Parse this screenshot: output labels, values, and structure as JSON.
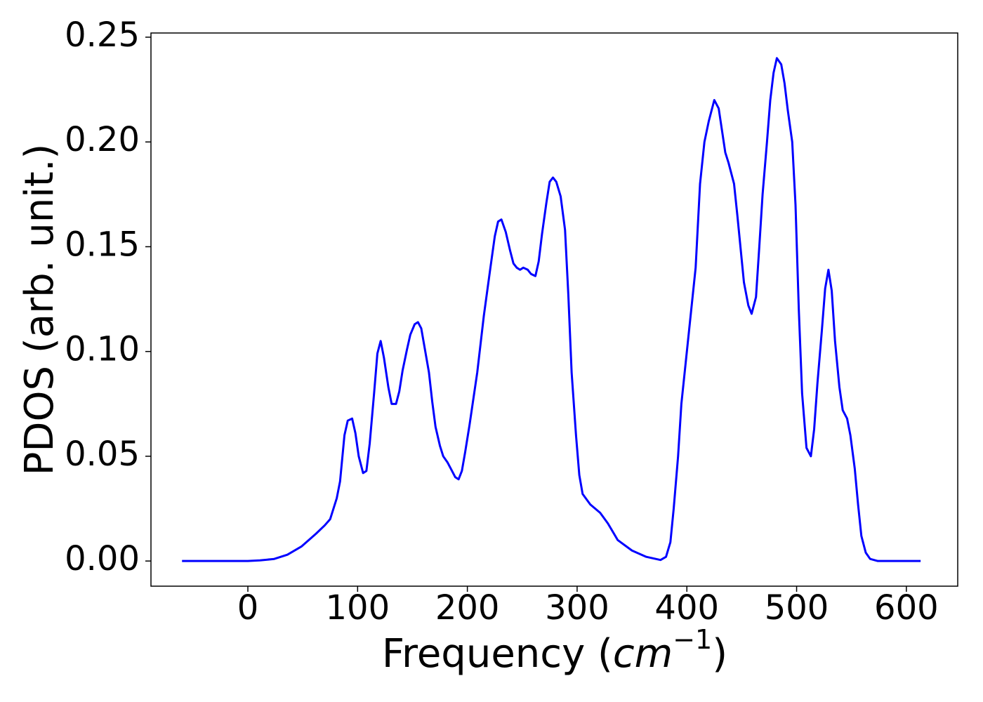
{
  "chart_data": {
    "type": "line",
    "ylabel": "PDOS (arb. unit.)",
    "xlabel": [
      "Frequency (",
      "cm",
      "−1",
      ")"
    ],
    "xlim": [
      -88.3,
      646.8
    ],
    "ylim": [
      -0.012,
      0.252
    ],
    "xticks": [
      0,
      100,
      200,
      300,
      400,
      500,
      600
    ],
    "yticks": [
      {
        "value": 0,
        "label": "0.00"
      },
      {
        "value": 0.05,
        "label": "0.05"
      },
      {
        "value": 0.1,
        "label": "0.10"
      },
      {
        "value": 0.15,
        "label": "0.15"
      },
      {
        "value": 0.2,
        "label": "0.20"
      },
      {
        "value": 0.25,
        "label": "0.25"
      }
    ],
    "color": "#0000ff",
    "x": [
      -60,
      0,
      11,
      24,
      36,
      49,
      62,
      70,
      75,
      81,
      84,
      88,
      91,
      95,
      98,
      101,
      105,
      108,
      111,
      115,
      118,
      121,
      124,
      128,
      131,
      135,
      138,
      141,
      145,
      148,
      152,
      155,
      158,
      161,
      165,
      168,
      171,
      175,
      178,
      182,
      186,
      189,
      192,
      195,
      198,
      202,
      209,
      215,
      221,
      225,
      228,
      231,
      235,
      239,
      242,
      245,
      248,
      251,
      255,
      258,
      262,
      265,
      268,
      272,
      275,
      278,
      281,
      285,
      289,
      292,
      295,
      299,
      302,
      305,
      312,
      321,
      328,
      337,
      350,
      363,
      376,
      381,
      385,
      388,
      392,
      395,
      400,
      408,
      412,
      416,
      420,
      425,
      429,
      435,
      438,
      443,
      446,
      452,
      456,
      459,
      463,
      466,
      469,
      473,
      476,
      479,
      482,
      486,
      489,
      492,
      496,
      499,
      502,
      505,
      509,
      513,
      516,
      519,
      523,
      526,
      529,
      532,
      535,
      539,
      542,
      546,
      549,
      553,
      556,
      559,
      563,
      567,
      574,
      613
    ],
    "values": [
      0,
      0,
      0.0003,
      0.001,
      0.003,
      0.007,
      0.013,
      0.017,
      0.02,
      0.03,
      0.038,
      0.06,
      0.067,
      0.068,
      0.061,
      0.05,
      0.042,
      0.043,
      0.056,
      0.08,
      0.099,
      0.105,
      0.097,
      0.083,
      0.075,
      0.075,
      0.081,
      0.091,
      0.101,
      0.108,
      0.113,
      0.114,
      0.111,
      0.102,
      0.09,
      0.076,
      0.064,
      0.055,
      0.05,
      0.047,
      0.043,
      0.04,
      0.039,
      0.043,
      0.052,
      0.065,
      0.09,
      0.117,
      0.14,
      0.155,
      0.162,
      0.163,
      0.157,
      0.148,
      0.142,
      0.14,
      0.139,
      0.14,
      0.139,
      0.137,
      0.136,
      0.143,
      0.156,
      0.171,
      0.181,
      0.183,
      0.181,
      0.174,
      0.158,
      0.127,
      0.09,
      0.06,
      0.041,
      0.032,
      0.027,
      0.023,
      0.018,
      0.01,
      0.005,
      0.002,
      0.0005,
      0.002,
      0.009,
      0.025,
      0.05,
      0.075,
      0.1,
      0.14,
      0.18,
      0.2,
      0.21,
      0.22,
      0.216,
      0.195,
      0.19,
      0.18,
      0.165,
      0.133,
      0.122,
      0.118,
      0.126,
      0.15,
      0.175,
      0.2,
      0.22,
      0.233,
      0.24,
      0.237,
      0.228,
      0.215,
      0.2,
      0.17,
      0.12,
      0.08,
      0.054,
      0.05,
      0.063,
      0.085,
      0.11,
      0.13,
      0.139,
      0.129,
      0.105,
      0.083,
      0.072,
      0.068,
      0.06,
      0.044,
      0.027,
      0.012,
      0.004,
      0.001,
      0,
      0
    ]
  }
}
